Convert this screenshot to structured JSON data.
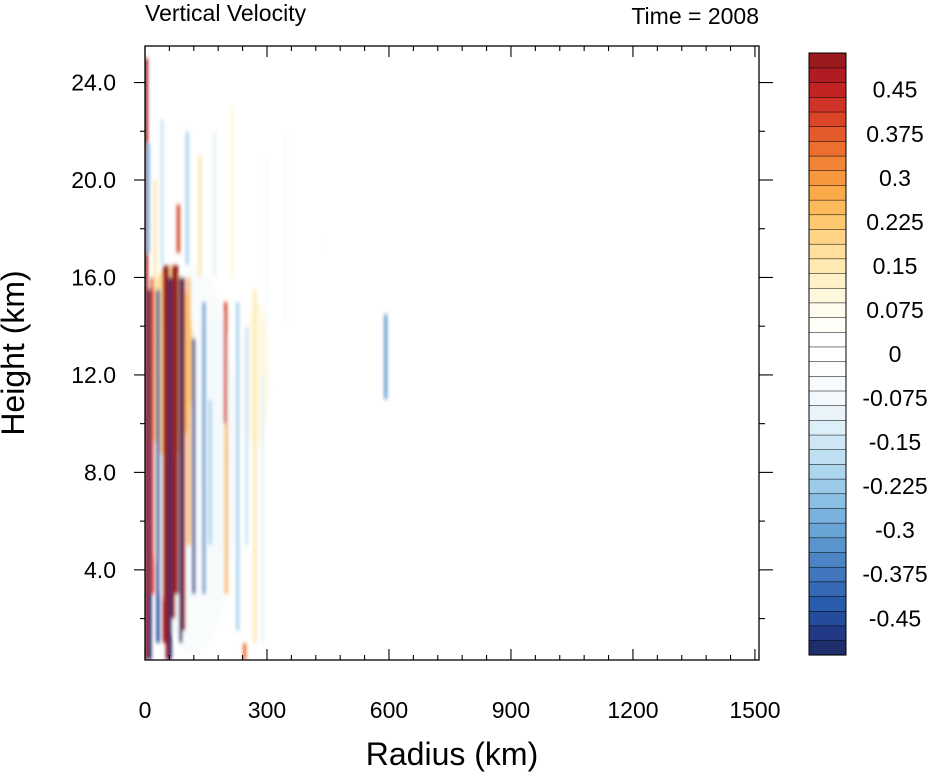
{
  "chart_data": {
    "type": "heatmap",
    "title": "Vertical Velocity",
    "subtitle": "Time = 2008",
    "xlabel": "Radius (km)",
    "ylabel": "Height (km)",
    "xlim": [
      0,
      1510
    ],
    "ylim": [
      0.3,
      25.5
    ],
    "x_ticks": [
      0,
      300,
      600,
      900,
      1200,
      1500
    ],
    "x_tick_labels": [
      "0",
      "300",
      "600",
      "900",
      "1200",
      "1500"
    ],
    "y_ticks": [
      4,
      8,
      12,
      16,
      20,
      24
    ],
    "y_tick_labels": [
      "4.0",
      "8.0",
      "12.0",
      "16.0",
      "20.0",
      "24.0"
    ],
    "colorbar": {
      "levels_min": -0.5,
      "levels_step": 0.025,
      "n_levels": 41,
      "labels": [
        {
          "value": 0.45,
          "text": "0.45"
        },
        {
          "value": 0.375,
          "text": "0.375"
        },
        {
          "value": 0.3,
          "text": "0.3"
        },
        {
          "value": 0.225,
          "text": "0.225"
        },
        {
          "value": 0.15,
          "text": "0.15"
        },
        {
          "value": 0.075,
          "text": "0.075"
        },
        {
          "value": 0,
          "text": "0"
        },
        {
          "value": -0.075,
          "text": "-0.075"
        },
        {
          "value": -0.15,
          "text": "-0.15"
        },
        {
          "value": -0.225,
          "text": "-0.225"
        },
        {
          "value": -0.3,
          "text": "-0.3"
        },
        {
          "value": -0.375,
          "text": "-0.375"
        },
        {
          "value": -0.45,
          "text": "-0.45"
        }
      ],
      "colors": [
        "#1e2e6b",
        "#223a85",
        "#254b9b",
        "#2a5cad",
        "#3569b5",
        "#4176bd",
        "#4d84c5",
        "#5b94cd",
        "#6aa3d5",
        "#7ab1dc",
        "#8bbee3",
        "#9ccae9",
        "#aed5ee",
        "#bfdff2",
        "#cfe7f5",
        "#ddeff8",
        "#e9f4fa",
        "#f2f8fc",
        "#f8fbfd",
        "#fcfdfe",
        "#ffffff",
        "#ffffff",
        "#fffef9",
        "#fffcee",
        "#fff7dc",
        "#fff1c8",
        "#ffe9b2",
        "#ffdf9c",
        "#ffd486",
        "#fec870",
        "#fdba5a",
        "#fbaa4a",
        "#f7983e",
        "#f28435",
        "#ec6f2f",
        "#e45a2b",
        "#da4528",
        "#cf3226",
        "#c22424",
        "#b01c22",
        "#9a1a1e"
      ]
    },
    "bands": [
      {
        "x": 3,
        "y0": 0.3,
        "y1": 25.0,
        "value": 0.5
      },
      {
        "x": 8,
        "y0": 17.0,
        "y1": 21.5,
        "value": -0.25
      },
      {
        "x": 12,
        "y0": 0.3,
        "y1": 15.5,
        "value": -0.5
      },
      {
        "x": 18,
        "y0": 3.0,
        "y1": 16.0,
        "value": 0.4
      },
      {
        "x": 25,
        "y0": 15.5,
        "y1": 20.0,
        "value": 0.15
      },
      {
        "x": 32,
        "y0": 1.0,
        "y1": 15.5,
        "value": -0.45
      },
      {
        "x": 42,
        "y0": 16.5,
        "y1": 22.5,
        "value": -0.15
      },
      {
        "x": 48,
        "y0": 1.0,
        "y1": 16.5,
        "value": 0.5
      },
      {
        "x": 55,
        "y0": 0.3,
        "y1": 16.5,
        "value": 0.5
      },
      {
        "x": 62,
        "y0": 0.3,
        "y1": 16.0,
        "value": -0.5
      },
      {
        "x": 70,
        "y0": 2.0,
        "y1": 16.5,
        "value": 0.5
      },
      {
        "x": 78,
        "y0": 3.0,
        "y1": 16.5,
        "value": 0.5
      },
      {
        "x": 82,
        "y0": 17.0,
        "y1": 19.0,
        "value": 0.4
      },
      {
        "x": 88,
        "y0": 1.0,
        "y1": 16.0,
        "value": -0.5
      },
      {
        "x": 95,
        "y0": 1.5,
        "y1": 16.0,
        "value": 0.5
      },
      {
        "x": 104,
        "y0": 16.5,
        "y1": 22.0,
        "value": -0.2
      },
      {
        "x": 108,
        "y0": 5.0,
        "y1": 16.0,
        "value": 0.25
      },
      {
        "x": 120,
        "y0": 3.0,
        "y1": 13.5,
        "value": -0.45
      },
      {
        "x": 135,
        "y0": 16.0,
        "y1": 21.0,
        "value": 0.15
      },
      {
        "x": 145,
        "y0": 3.0,
        "y1": 15.0,
        "value": -0.3
      },
      {
        "x": 160,
        "y0": 5.0,
        "y1": 11.0,
        "value": -0.2
      },
      {
        "x": 172,
        "y0": 16.0,
        "y1": 22.0,
        "value": -0.1
      },
      {
        "x": 198,
        "y0": 10.0,
        "y1": 15.0,
        "value": 0.4
      },
      {
        "x": 200,
        "y0": 3.0,
        "y1": 10.0,
        "value": 0.25
      },
      {
        "x": 215,
        "y0": 16.0,
        "y1": 23.0,
        "value": 0.1
      },
      {
        "x": 228,
        "y0": 1.5,
        "y1": 15.0,
        "value": -0.2
      },
      {
        "x": 245,
        "y0": 0.3,
        "y1": 1.0,
        "value": 0.35
      },
      {
        "x": 250,
        "y0": 5.0,
        "y1": 14.0,
        "value": -0.15
      },
      {
        "x": 270,
        "y0": 1.0,
        "y1": 15.5,
        "value": 0.15
      },
      {
        "x": 290,
        "y0": 1.0,
        "y1": 12.0,
        "value": -0.1
      },
      {
        "x": 300,
        "y0": 14.0,
        "y1": 21.0,
        "value": -0.05
      },
      {
        "x": 345,
        "y0": 14.0,
        "y1": 22.0,
        "value": -0.05
      },
      {
        "x": 430,
        "y0": 17.0,
        "y1": 18.0,
        "value": 0.05
      },
      {
        "x": 592,
        "y0": 11.0,
        "y1": 14.5,
        "value": -0.3
      }
    ],
    "blobs": [
      {
        "x": 175,
        "y": 9.5,
        "rx": 40,
        "ry": 5.0,
        "value": -0.12
      },
      {
        "x": 275,
        "y": 12.0,
        "rx": 30,
        "ry": 3.0,
        "value": 0.1
      },
      {
        "x": 120,
        "y": 8.5,
        "rx": 110,
        "ry": 8.0,
        "value": -0.04
      },
      {
        "x": 60,
        "y": 12.5,
        "rx": 60,
        "ry": 4.0,
        "value": 0.2
      }
    ]
  }
}
